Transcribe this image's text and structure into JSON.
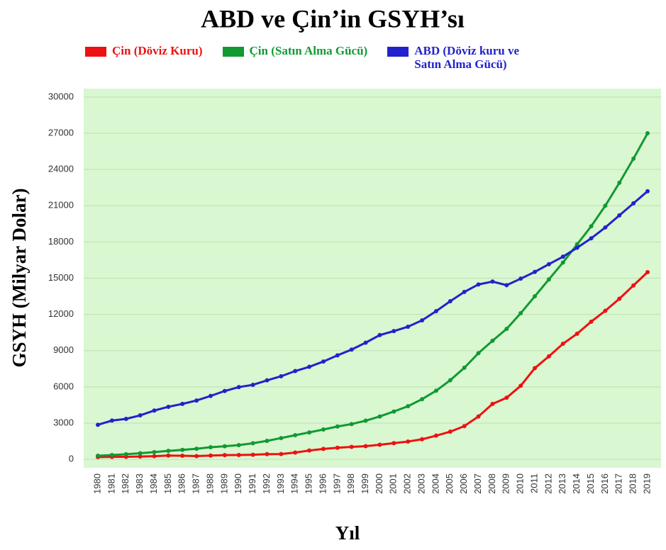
{
  "chart_data": {
    "type": "line",
    "title": "ABD ve Çin’in GSYH’sı",
    "x_label": "Yıl",
    "y_label": "GSYH (Milyar Dolar)",
    "categories": [
      "1980",
      "1981",
      "1982",
      "1983",
      "1984",
      "1985",
      "1986",
      "1987",
      "1988",
      "1989",
      "1990",
      "1991",
      "1992",
      "1993",
      "1994",
      "1995",
      "1996",
      "1997",
      "1998",
      "1999",
      "2000",
      "2001",
      "2002",
      "2003",
      "2004",
      "2005",
      "2006",
      "2007",
      "2008",
      "2009",
      "2010",
      "2011",
      "2012",
      "2013",
      "2014",
      "2015",
      "2016",
      "2017",
      "2018",
      "2019"
    ],
    "series": [
      {
        "name": "Çin (Döviz Kuru)",
        "color": "#ee1111",
        "values": [
          190,
          200,
          210,
          230,
          260,
          310,
          300,
          270,
          310,
          350,
          360,
          380,
          430,
          440,
          560,
          730,
          860,
          960,
          1030,
          1090,
          1210,
          1340,
          1470,
          1660,
          1960,
          2290,
          2750,
          3550,
          4590,
          5100,
          6090,
          7550,
          8530,
          9570,
          10400,
          11400,
          12300,
          13300,
          14400,
          15500
        ]
      },
      {
        "name": "Çin (Satın Alma Gücü)",
        "color": "#119933",
        "values": [
          300,
          360,
          420,
          500,
          600,
          700,
          780,
          880,
          1000,
          1080,
          1180,
          1330,
          1530,
          1760,
          2000,
          2230,
          2470,
          2720,
          2920,
          3200,
          3550,
          3960,
          4400,
          4980,
          5680,
          6550,
          7580,
          8790,
          9820,
          10800,
          12100,
          13500,
          14900,
          16300,
          17800,
          19300,
          21000,
          22900,
          24900,
          27000
        ]
      },
      {
        "name": "ABD (Döviz kuru ve Satın Alma Gücü)",
        "color": "#2222cc",
        "values": [
          2860,
          3210,
          3350,
          3640,
          4040,
          4350,
          4590,
          4870,
          5250,
          5660,
          5980,
          6170,
          6540,
          6880,
          7310,
          7660,
          8100,
          8610,
          9090,
          9660,
          10290,
          10620,
          10980,
          11510,
          12270,
          13090,
          13860,
          14480,
          14720,
          14420,
          14960,
          15520,
          16160,
          16780,
          17520,
          18300,
          19200,
          20200,
          21200,
          22200
        ]
      }
    ],
    "ylim": [
      -700,
      30700
    ],
    "yticks": [
      0,
      3000,
      6000,
      9000,
      12000,
      15000,
      18000,
      21000,
      24000,
      27000,
      30000
    ],
    "grid": true,
    "background": "#d9f7d0"
  }
}
